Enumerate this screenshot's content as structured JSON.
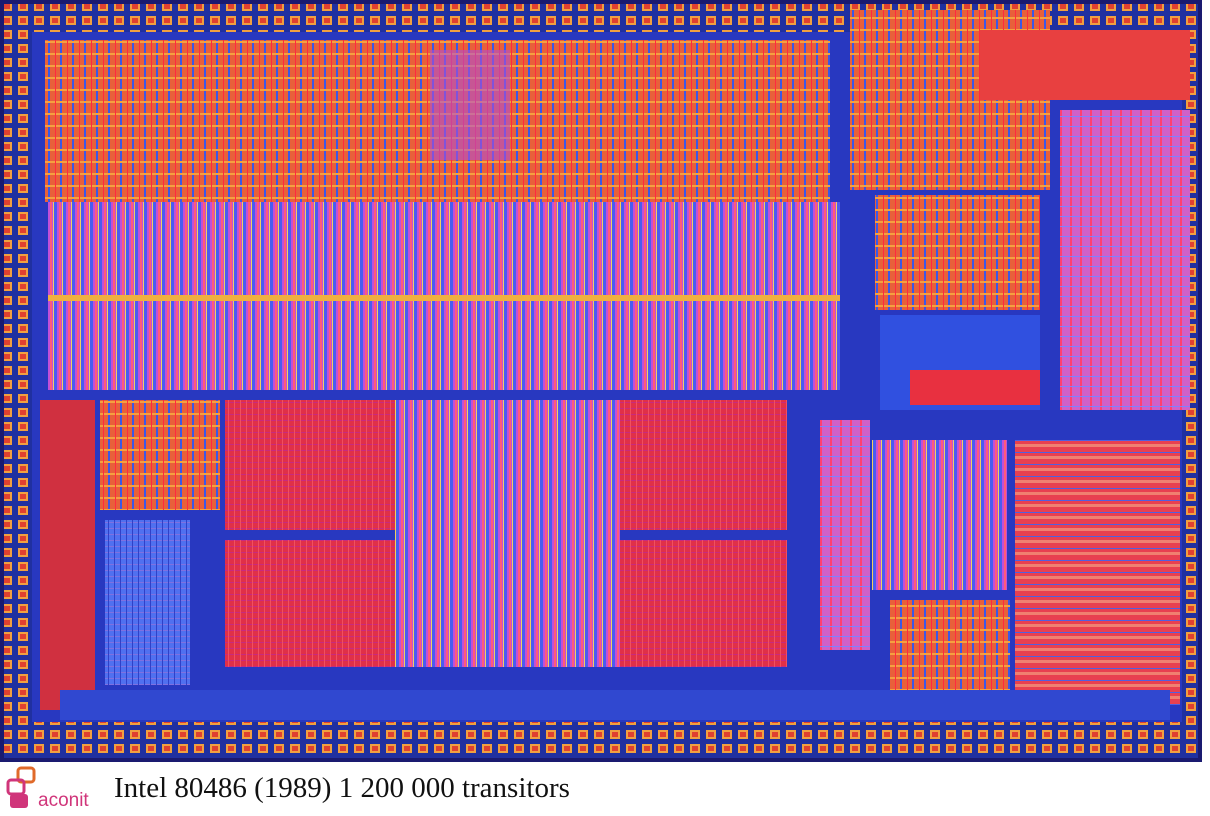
{
  "logo": {
    "text": "aconit"
  },
  "caption": "Intel 80486 (1989) 1 200 000 transitors"
}
